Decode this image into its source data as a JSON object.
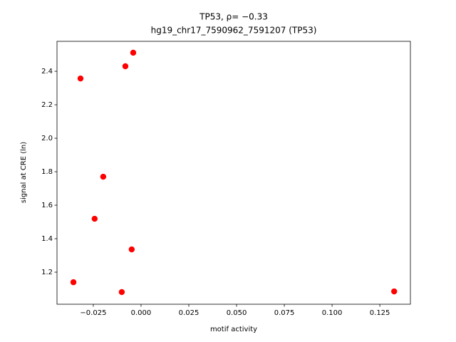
{
  "chart_data": {
    "type": "scatter",
    "title": "TP53, ρ= −0.33",
    "subtitle": "hg19_chr17_7590962_7591207 (TP53)",
    "x_label": "motif activity",
    "y_label": "signal at CRE (ln)",
    "color": "#ff0000",
    "x": [
      -0.0041,
      -0.0082,
      -0.0317,
      -0.0198,
      -0.0243,
      -0.0049,
      -0.0354,
      -0.0101,
      0.1325
    ],
    "values": [
      2.511,
      2.43,
      2.357,
      1.77,
      1.519,
      1.336,
      1.14,
      1.081,
      1.085
    ],
    "xlim": [
      -0.044,
      0.141
    ],
    "ylim": [
      1.0085,
      2.579
    ],
    "xticks": [
      {
        "value": -0.025,
        "label": "−0.025"
      },
      {
        "value": 0,
        "label": "0.000"
      },
      {
        "value": 0.025,
        "label": "0.025"
      },
      {
        "value": 0.05,
        "label": "0.050"
      },
      {
        "value": 0.075,
        "label": "0.075"
      },
      {
        "value": 0.1,
        "label": "0.100"
      },
      {
        "value": 0.125,
        "label": "0.125"
      }
    ],
    "yticks": [
      1.2,
      1.4,
      1.6,
      1.8,
      {
        "value": 2,
        "label": "2.0"
      },
      2.2,
      2.4
    ],
    "grid": false
  }
}
